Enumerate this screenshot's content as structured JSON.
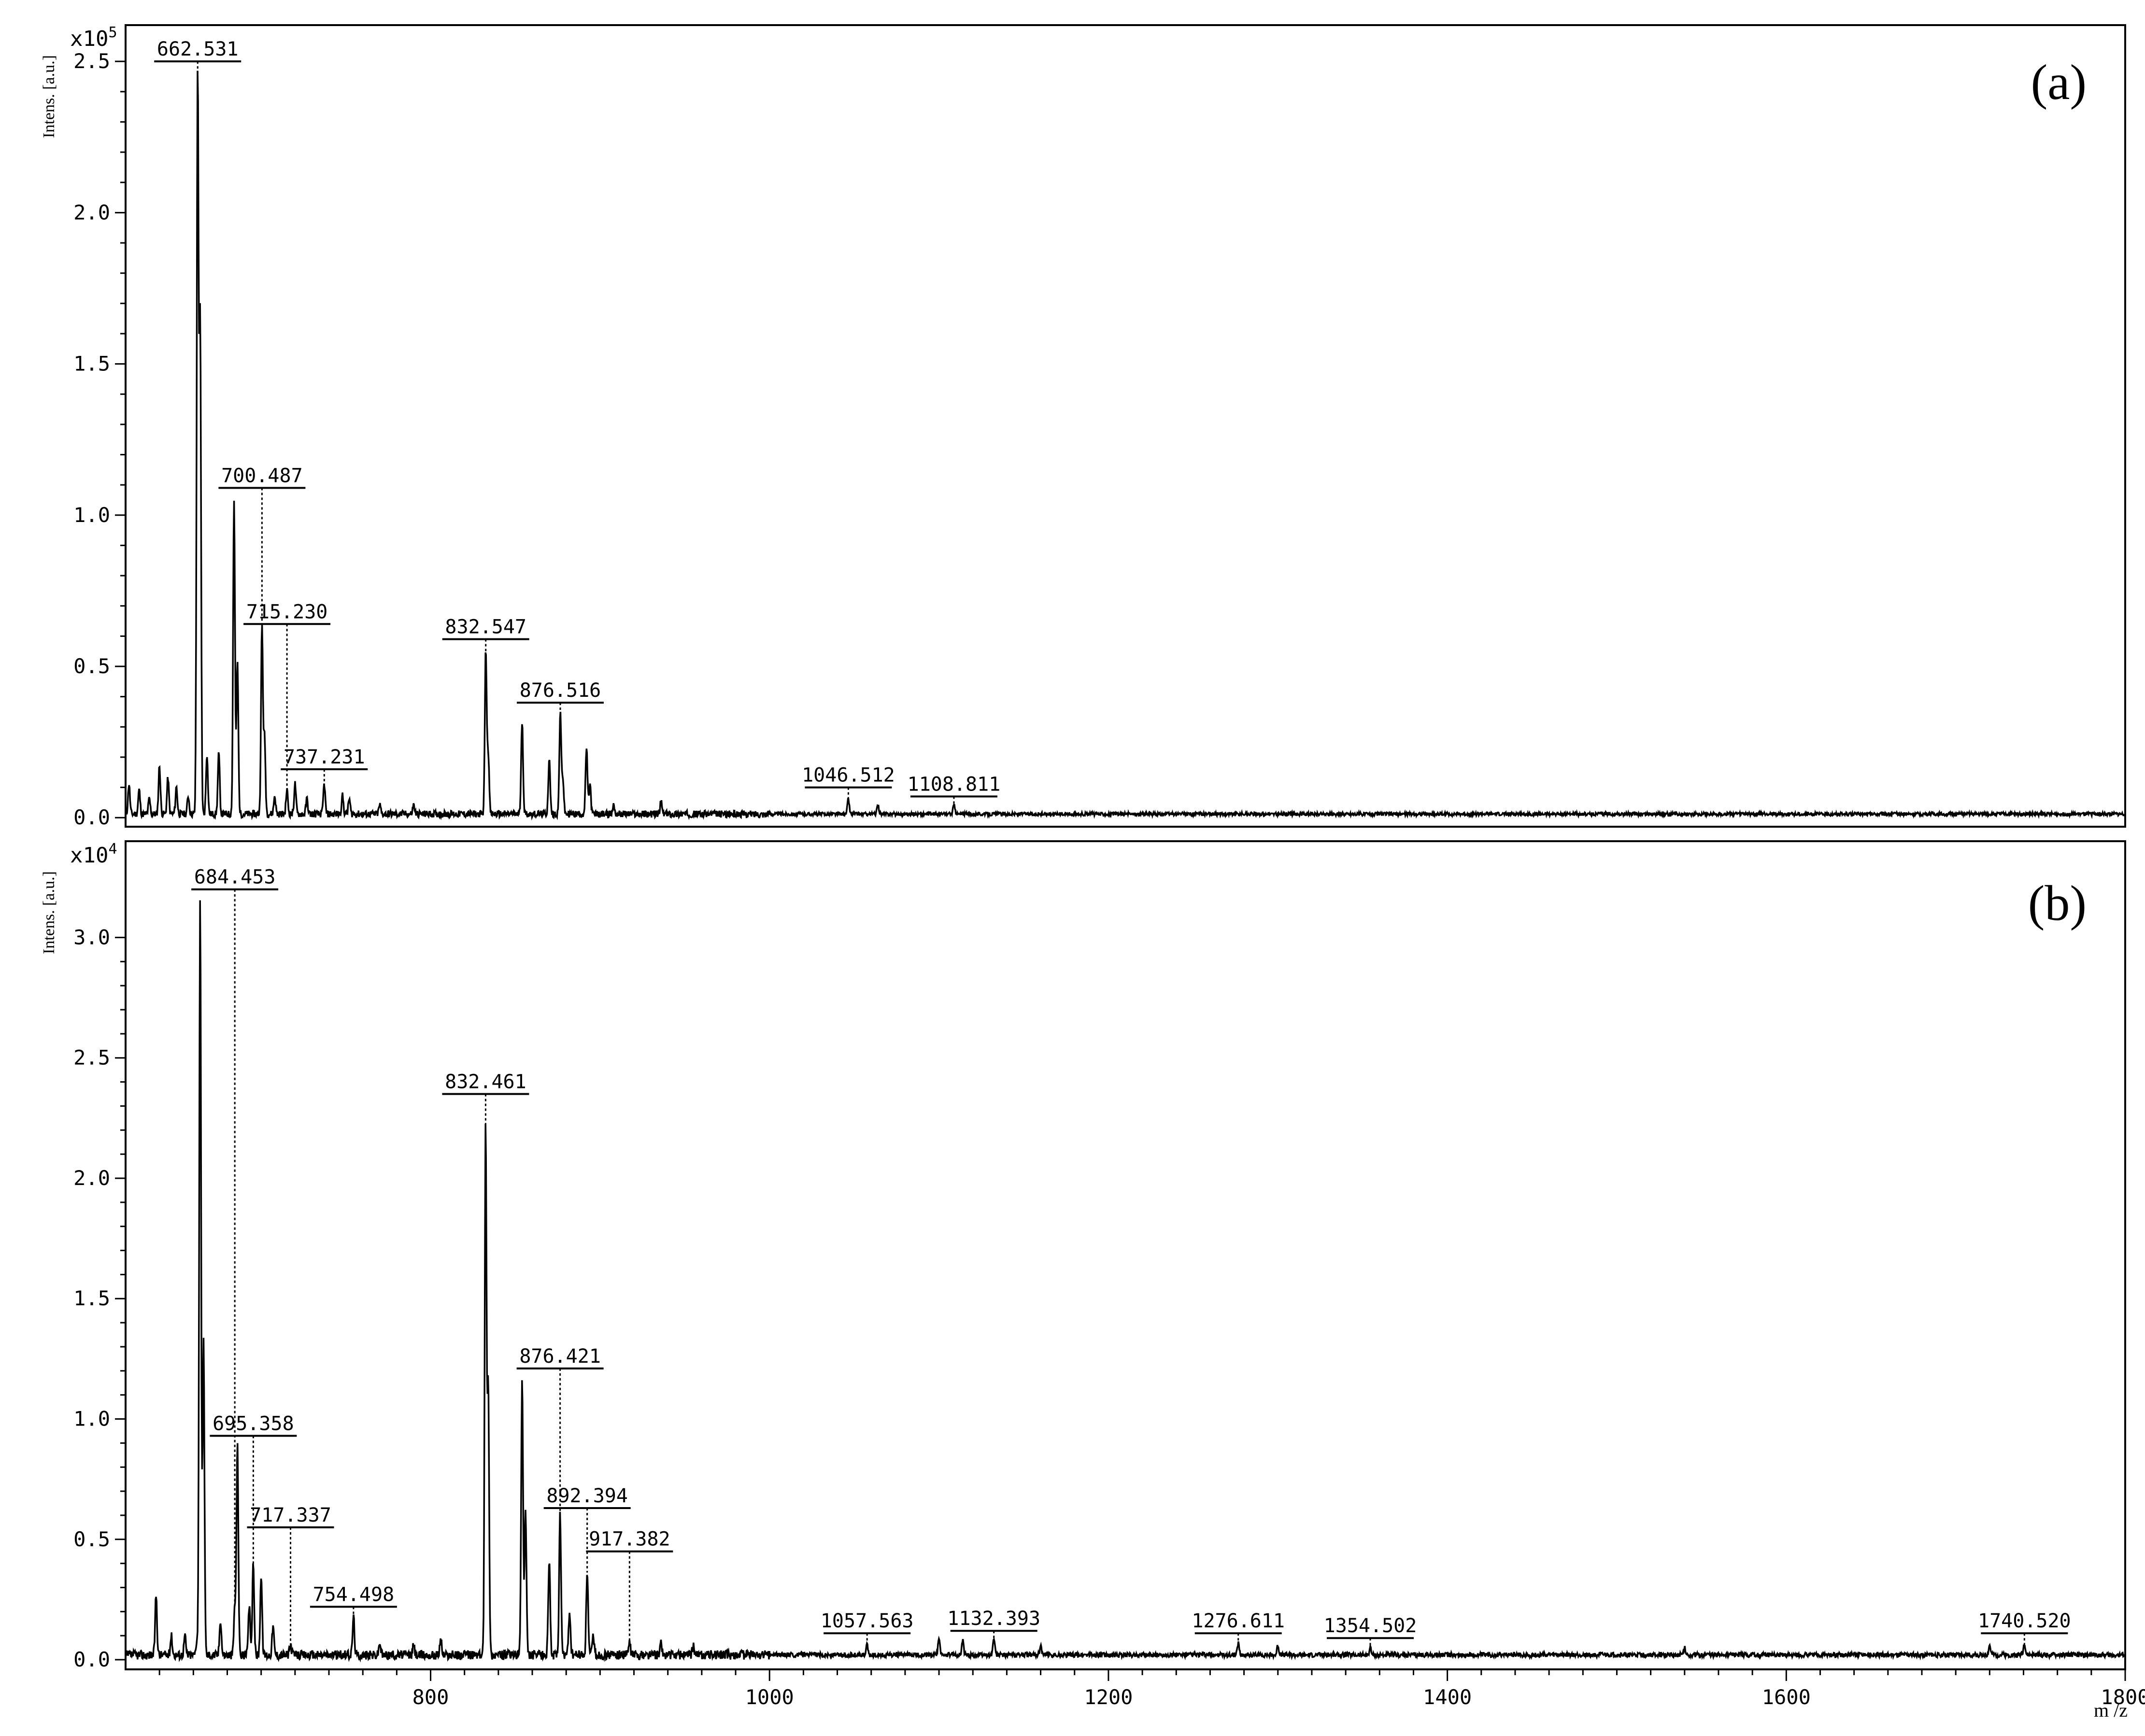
{
  "colors": {
    "trace": "#000000",
    "background": "#ffffff"
  },
  "x_axis": {
    "label": "m /z",
    "range": [
      620,
      1800
    ],
    "ticks": [
      800,
      1000,
      1200,
      1400,
      1600,
      1800
    ],
    "tick_labels": [
      "800",
      "1000",
      "1200",
      "1400",
      "1600",
      "1800"
    ]
  },
  "chart_data": [
    {
      "type": "line",
      "panel_label": "(a)",
      "ylabel": "Intens. [a.u.]",
      "y_multiplier": "x10",
      "y_multiplier_exponent": "5",
      "yticks": [
        0.0,
        0.5,
        1.0,
        1.5,
        2.0,
        2.5
      ],
      "ytick_labels": [
        "0.0",
        "0.5",
        "1.0",
        "1.5",
        "2.0",
        "2.5"
      ],
      "ylim": [
        -0.03,
        2.62
      ],
      "xlim": [
        620,
        1800
      ],
      "baseline": 0.012,
      "peaks": [
        {
          "x": 622,
          "y": 0.1
        },
        {
          "x": 628,
          "y": 0.08
        },
        {
          "x": 634,
          "y": 0.05
        },
        {
          "x": 640,
          "y": 0.16
        },
        {
          "x": 645,
          "y": 0.12
        },
        {
          "x": 650,
          "y": 0.09
        },
        {
          "x": 657,
          "y": 0.06
        },
        {
          "x": 662.531,
          "y": 2.44
        },
        {
          "x": 664,
          "y": 1.6
        },
        {
          "x": 668,
          "y": 0.2
        },
        {
          "x": 675,
          "y": 0.2
        },
        {
          "x": 684,
          "y": 1.04
        },
        {
          "x": 686,
          "y": 0.5
        },
        {
          "x": 700.487,
          "y": 0.62
        },
        {
          "x": 702,
          "y": 0.25
        },
        {
          "x": 708,
          "y": 0.06
        },
        {
          "x": 715.23,
          "y": 0.08
        },
        {
          "x": 720,
          "y": 0.1
        },
        {
          "x": 727,
          "y": 0.05
        },
        {
          "x": 737.231,
          "y": 0.1
        },
        {
          "x": 748,
          "y": 0.06
        },
        {
          "x": 752,
          "y": 0.05
        },
        {
          "x": 770,
          "y": 0.03
        },
        {
          "x": 790,
          "y": 0.03
        },
        {
          "x": 832.547,
          "y": 0.54
        },
        {
          "x": 834,
          "y": 0.2
        },
        {
          "x": 854,
          "y": 0.31
        },
        {
          "x": 870,
          "y": 0.18
        },
        {
          "x": 876.516,
          "y": 0.33
        },
        {
          "x": 878,
          "y": 0.12
        },
        {
          "x": 892,
          "y": 0.22
        },
        {
          "x": 894,
          "y": 0.1
        },
        {
          "x": 908,
          "y": 0.03
        },
        {
          "x": 936,
          "y": 0.04
        },
        {
          "x": 1046.512,
          "y": 0.05
        },
        {
          "x": 1064,
          "y": 0.03
        },
        {
          "x": 1108.811,
          "y": 0.03
        }
      ],
      "annotations": [
        {
          "label": "662.531",
          "x": 662.531,
          "y": 2.44,
          "text_y": 2.5
        },
        {
          "label": "700.487",
          "x": 700.487,
          "y": 0.62,
          "text_y": 1.09
        },
        {
          "label": "715.230",
          "x": 715.23,
          "y": 0.08,
          "text_y": 0.64
        },
        {
          "label": "737.231",
          "x": 737.231,
          "y": 0.1,
          "text_y": 0.16
        },
        {
          "label": "832.547",
          "x": 832.547,
          "y": 0.54,
          "text_y": 0.59
        },
        {
          "label": "876.516",
          "x": 876.516,
          "y": 0.33,
          "text_y": 0.38
        },
        {
          "label": "1046.512",
          "x": 1046.512,
          "y": 0.05,
          "text_y": 0.1
        },
        {
          "label": "1108.811",
          "x": 1108.811,
          "y": 0.03,
          "text_y": 0.07
        }
      ]
    },
    {
      "type": "line",
      "panel_label": "(b)",
      "ylabel": "Intens. [a.u.]",
      "y_multiplier": "x10",
      "y_multiplier_exponent": "4",
      "yticks": [
        0.0,
        0.5,
        1.0,
        1.5,
        2.0,
        2.5,
        3.0
      ],
      "ytick_labels": [
        "0.0",
        "0.5",
        "1.0",
        "1.5",
        "2.0",
        "2.5",
        "3.0"
      ],
      "ylim": [
        -0.04,
        3.4
      ],
      "xlim": [
        620,
        1800
      ],
      "baseline": 0.02,
      "peaks": [
        {
          "x": 638,
          "y": 0.25
        },
        {
          "x": 647,
          "y": 0.08
        },
        {
          "x": 655,
          "y": 0.08
        },
        {
          "x": 662,
          "y": 0.06
        },
        {
          "x": 664,
          "y": 3.15
        },
        {
          "x": 666,
          "y": 1.3
        },
        {
          "x": 676,
          "y": 0.15
        },
        {
          "x": 684.453,
          "y": 0.2
        },
        {
          "x": 686,
          "y": 0.87
        },
        {
          "x": 693,
          "y": 0.2
        },
        {
          "x": 695.358,
          "y": 0.38
        },
        {
          "x": 700,
          "y": 0.33
        },
        {
          "x": 707,
          "y": 0.12
        },
        {
          "x": 717.337,
          "y": 0.04
        },
        {
          "x": 754.498,
          "y": 0.16
        },
        {
          "x": 770,
          "y": 0.05
        },
        {
          "x": 790,
          "y": 0.04
        },
        {
          "x": 806,
          "y": 0.07
        },
        {
          "x": 832.461,
          "y": 2.2
        },
        {
          "x": 834,
          "y": 1.1
        },
        {
          "x": 854,
          "y": 1.15
        },
        {
          "x": 856,
          "y": 0.6
        },
        {
          "x": 870,
          "y": 0.4
        },
        {
          "x": 876.421,
          "y": 0.58
        },
        {
          "x": 882,
          "y": 0.18
        },
        {
          "x": 892.394,
          "y": 0.35
        },
        {
          "x": 896,
          "y": 0.08
        },
        {
          "x": 917.382,
          "y": 0.05
        },
        {
          "x": 936,
          "y": 0.05
        },
        {
          "x": 955,
          "y": 0.04
        },
        {
          "x": 1057.563,
          "y": 0.04
        },
        {
          "x": 1100,
          "y": 0.07
        },
        {
          "x": 1114,
          "y": 0.06
        },
        {
          "x": 1132.393,
          "y": 0.07
        },
        {
          "x": 1160,
          "y": 0.04
        },
        {
          "x": 1276.611,
          "y": 0.05
        },
        {
          "x": 1300,
          "y": 0.04
        },
        {
          "x": 1354.502,
          "y": 0.03
        },
        {
          "x": 1540,
          "y": 0.03
        },
        {
          "x": 1720,
          "y": 0.04
        },
        {
          "x": 1740.52,
          "y": 0.05
        }
      ],
      "annotations": [
        {
          "label": "684.453",
          "x": 684.453,
          "y": 0.2,
          "text_y": 3.2
        },
        {
          "label": "832.461",
          "x": 832.461,
          "y": 2.2,
          "text_y": 2.35
        },
        {
          "label": "876.421",
          "x": 876.421,
          "y": 0.58,
          "text_y": 1.21
        },
        {
          "label": "695.358",
          "x": 695.358,
          "y": 0.38,
          "text_y": 0.93
        },
        {
          "label": "892.394",
          "x": 892.394,
          "y": 0.35,
          "text_y": 0.63
        },
        {
          "label": "717.337",
          "x": 717.337,
          "y": 0.04,
          "text_y": 0.55
        },
        {
          "label": "917.382",
          "x": 917.382,
          "y": 0.05,
          "text_y": 0.45
        },
        {
          "label": "754.498",
          "x": 754.498,
          "y": 0.16,
          "text_y": 0.22
        },
        {
          "label": "1057.563",
          "x": 1057.563,
          "y": 0.04,
          "text_y": 0.11
        },
        {
          "label": "1132.393",
          "x": 1132.393,
          "y": 0.07,
          "text_y": 0.12
        },
        {
          "label": "1276.611",
          "x": 1276.611,
          "y": 0.05,
          "text_y": 0.11
        },
        {
          "label": "1354.502",
          "x": 1354.502,
          "y": 0.03,
          "text_y": 0.09
        },
        {
          "label": "1740.520",
          "x": 1740.52,
          "y": 0.05,
          "text_y": 0.11
        }
      ]
    }
  ]
}
